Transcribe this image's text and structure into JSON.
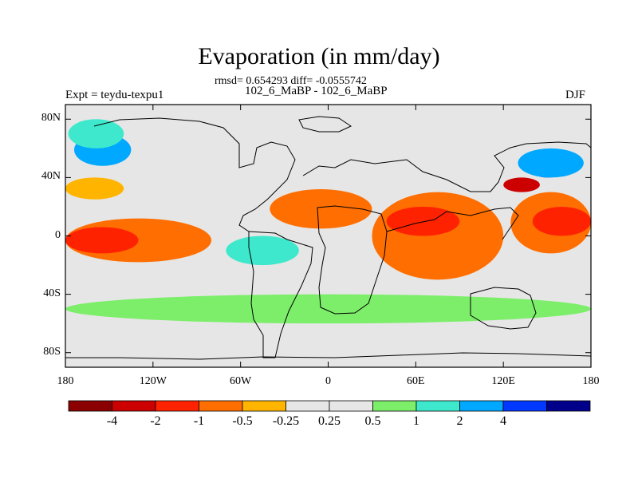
{
  "figure": {
    "title": "Evaporation (in mm/day)",
    "stats": "rmsd= 0.654293 diff= -0.0555742",
    "subtitle": "102_6_MaBP - 102_6_MaBP",
    "left_label": "Expt = teydu-texpu1",
    "right_label": "DJF"
  },
  "axes": {
    "lat_labels": [
      "80N",
      "40N",
      "0",
      "40S",
      "80S"
    ],
    "lat_values": [
      80,
      40,
      0,
      -40,
      -80
    ],
    "lon_labels": [
      "180",
      "120W",
      "60W",
      "0",
      "60E",
      "120E",
      "180"
    ],
    "lon_values": [
      -180,
      -120,
      -60,
      0,
      60,
      120,
      180
    ],
    "lon_range": [
      -180,
      180
    ],
    "lat_range": [
      -90,
      90
    ]
  },
  "colorbar": {
    "colors": [
      "#8b0000",
      "#cc0000",
      "#ff2200",
      "#ff6e00",
      "#ffb400",
      "#e6e6e6",
      "#e6e6e6",
      "#7cee6a",
      "#3ee8cc",
      "#00a8ff",
      "#0038ff",
      "#00008b"
    ],
    "labels": [
      "-4",
      "-2",
      "-1",
      "-0.5",
      "-0.25",
      "0.25",
      "0.5",
      "1",
      "2",
      "4"
    ]
  },
  "regions": [
    {
      "level": "blue_light",
      "color": "#00a8ff",
      "lon": [
        -174,
        -135
      ],
      "lat": [
        48,
        70
      ]
    },
    {
      "level": "teal",
      "color": "#3ee8cc",
      "lon": [
        -178,
        -140
      ],
      "lat": [
        60,
        80
      ]
    },
    {
      "level": "orange",
      "color": "#ff6e00",
      "lon": [
        -180,
        -80
      ],
      "lat": [
        -18,
        12
      ]
    },
    {
      "level": "red",
      "color": "#ff2200",
      "lon": [
        -180,
        -130
      ],
      "lat": [
        -12,
        6
      ]
    },
    {
      "level": "orange",
      "color": "#ff6e00",
      "lon": [
        -40,
        30
      ],
      "lat": [
        5,
        32
      ]
    },
    {
      "level": "orange",
      "color": "#ff6e00",
      "lon": [
        30,
        120
      ],
      "lat": [
        -30,
        30
      ]
    },
    {
      "level": "red",
      "color": "#ff2200",
      "lon": [
        40,
        90
      ],
      "lat": [
        0,
        20
      ]
    },
    {
      "level": "orange",
      "color": "#ff6e00",
      "lon": [
        125,
        180
      ],
      "lat": [
        -12,
        30
      ]
    },
    {
      "level": "red",
      "color": "#ff2200",
      "lon": [
        140,
        180
      ],
      "lat": [
        0,
        20
      ]
    },
    {
      "level": "dark_red",
      "color": "#cc0000",
      "lon": [
        120,
        145
      ],
      "lat": [
        30,
        40
      ]
    },
    {
      "level": "blue",
      "color": "#0038ff",
      "lon": [
        140,
        160
      ],
      "lat": [
        40,
        50
      ]
    },
    {
      "level": "blue_light",
      "color": "#00a8ff",
      "lon": [
        130,
        175
      ],
      "lat": [
        40,
        60
      ]
    },
    {
      "level": "teal",
      "color": "#3ee8cc",
      "lon": [
        -70,
        -20
      ],
      "lat": [
        -20,
        0
      ]
    },
    {
      "level": "green",
      "color": "#7cee6a",
      "lon": [
        -180,
        180
      ],
      "lat": [
        -60,
        -40
      ]
    },
    {
      "level": "yellow",
      "color": "#ffb400",
      "lon": [
        -180,
        -140
      ],
      "lat": [
        25,
        40
      ]
    }
  ]
}
